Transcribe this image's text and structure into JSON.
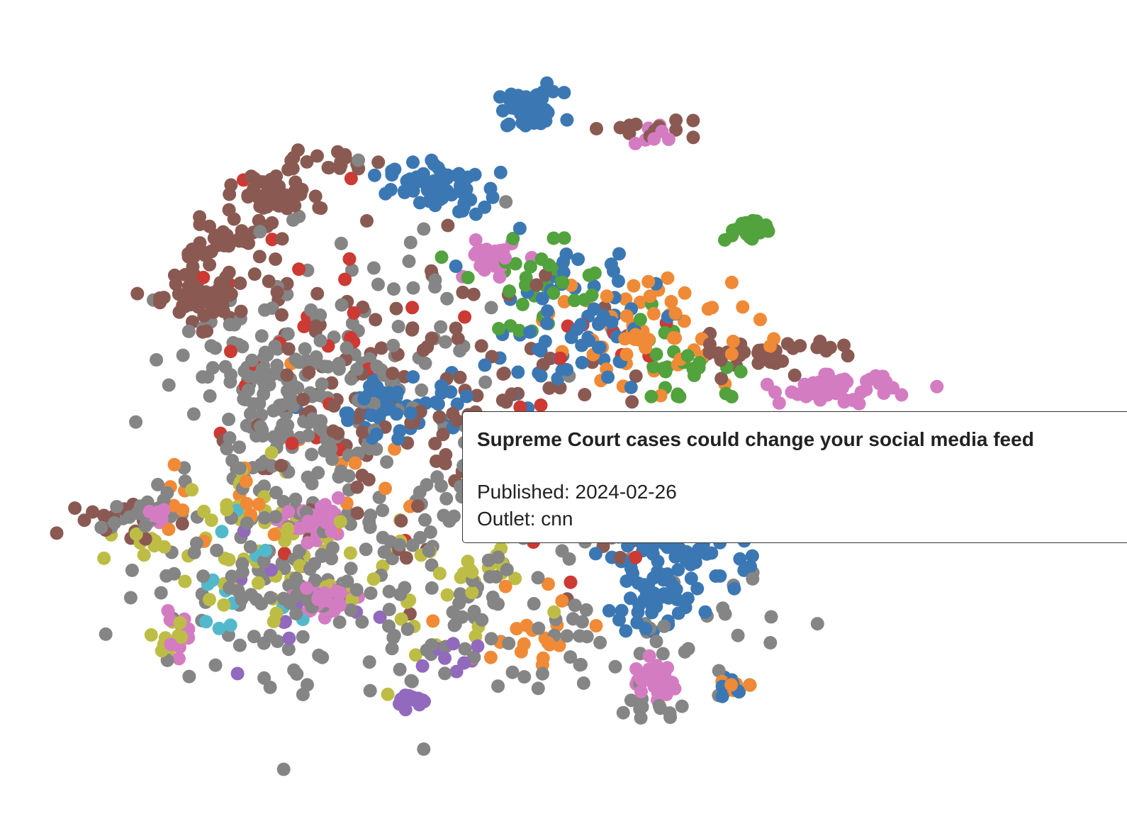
{
  "chart_data": {
    "type": "scatter",
    "title": "",
    "xlabel": "",
    "ylabel": "",
    "axes_visible": false,
    "grid": false,
    "colors": {
      "blue": "#3b78b3",
      "orange": "#f08a36",
      "green": "#52a23d",
      "red": "#cc3a33",
      "purple": "#9169bd",
      "brown": "#8a5a52",
      "pink": "#d47cc2",
      "gray": "#858585",
      "olive": "#bdbd45",
      "cyan": "#52b9cc"
    },
    "clusters": [
      {
        "series": "blue",
        "center": [
          51.0,
          93.4
        ],
        "spread": [
          1.8,
          1.3
        ],
        "count": 60
      },
      {
        "series": "blue",
        "center": [
          40.9,
          82.5
        ],
        "spread": [
          2.6,
          1.8
        ],
        "count": 60
      },
      {
        "series": "blue",
        "center": [
          37.5,
          51.6
        ],
        "spread": [
          3.6,
          2.3
        ],
        "count": 55
      },
      {
        "series": "blue",
        "center": [
          66.5,
          31.0
        ],
        "spread": [
          4.2,
          2.8
        ],
        "count": 60
      },
      {
        "series": "blue",
        "center": [
          64.2,
          23.3
        ],
        "spread": [
          2.4,
          2.3
        ],
        "count": 35
      },
      {
        "series": "blue",
        "center": [
          55.5,
          63.1
        ],
        "spread": [
          4.6,
          5.0
        ],
        "count": 70
      },
      {
        "series": "brown",
        "center": [
          23.3,
          81.4
        ],
        "spread": [
          1.9,
          1.6
        ],
        "count": 55
      },
      {
        "series": "brown",
        "center": [
          15.5,
          67.0
        ],
        "spread": [
          3.2,
          1.9
        ],
        "count": 65
      },
      {
        "series": "brown",
        "center": [
          17.8,
          74.9
        ],
        "spread": [
          2.6,
          1.5
        ],
        "count": 40
      },
      {
        "series": "brown",
        "center": [
          29.4,
          86.0
        ],
        "spread": [
          2.0,
          0.8
        ],
        "count": 18
      },
      {
        "series": "brown",
        "center": [
          77.0,
          59.3
        ],
        "spread": [
          4.6,
          1.3
        ],
        "count": 35
      },
      {
        "series": "brown",
        "center": [
          47.5,
          48.3
        ],
        "spread": [
          9.5,
          10.3
        ],
        "count": 90
      },
      {
        "series": "brown",
        "center": [
          30.0,
          51.6
        ],
        "spread": [
          6.5,
          7.9
        ],
        "count": 60
      },
      {
        "series": "gray",
        "center": [
          24.2,
          52.7
        ],
        "spread": [
          5.6,
          7.0
        ],
        "count": 140
      },
      {
        "series": "gray",
        "center": [
          23.9,
          29.3
        ],
        "spread": [
          7.3,
          9.3
        ],
        "count": 120
      },
      {
        "series": "gray",
        "center": [
          43.2,
          26.7
        ],
        "spread": [
          9.0,
          10.3
        ],
        "count": 110
      },
      {
        "series": "gray",
        "center": [
          33.9,
          56.6
        ],
        "spread": [
          7.8,
          11.3
        ],
        "count": 90
      },
      {
        "series": "gray",
        "center": [
          62.4,
          19.1
        ],
        "spread": [
          9.5,
          4.3
        ],
        "count": 40
      },
      {
        "series": "pink",
        "center": [
          84.1,
          53.9
        ],
        "spread": [
          3.0,
          1.0
        ],
        "count": 55
      },
      {
        "series": "pink",
        "center": [
          64.2,
          12.4
        ],
        "spread": [
          1.3,
          1.3
        ],
        "count": 40
      },
      {
        "series": "pink",
        "center": [
          28.4,
          34.5
        ],
        "spread": [
          1.6,
          1.2
        ],
        "count": 40
      },
      {
        "series": "pink",
        "center": [
          29.1,
          24.2
        ],
        "spread": [
          1.6,
          1.2
        ],
        "count": 35
      },
      {
        "series": "pink",
        "center": [
          46.5,
          72.4
        ],
        "spread": [
          1.3,
          1.5
        ],
        "count": 30
      },
      {
        "series": "pink",
        "center": [
          10.8,
          35.4
        ],
        "spread": [
          1.0,
          0.8
        ],
        "count": 15
      },
      {
        "series": "green",
        "center": [
          74.1,
          76.5
        ],
        "spread": [
          1.3,
          0.8
        ],
        "count": 25
      },
      {
        "series": "green",
        "center": [
          53.1,
          68.1
        ],
        "spread": [
          5.2,
          3.0
        ],
        "count": 35
      },
      {
        "series": "green",
        "center": [
          68.1,
          56.6
        ],
        "spread": [
          3.6,
          2.5
        ],
        "count": 25
      },
      {
        "series": "orange",
        "center": [
          64.2,
          62.4
        ],
        "spread": [
          5.8,
          4.3
        ],
        "count": 60
      },
      {
        "series": "orange",
        "center": [
          52.5,
          20.1
        ],
        "spread": [
          3.9,
          3.5
        ],
        "count": 20
      },
      {
        "series": "orange",
        "center": [
          22.3,
          41.0
        ],
        "spread": [
          7.3,
          6.4
        ],
        "count": 25
      },
      {
        "series": "olive",
        "center": [
          22.6,
          32.5
        ],
        "spread": [
          4.9,
          5.8
        ],
        "count": 50
      },
      {
        "series": "olive",
        "center": [
          41.5,
          23.7
        ],
        "spread": [
          4.9,
          5.5
        ],
        "count": 30
      },
      {
        "series": "red",
        "center": [
          26.5,
          59.4
        ],
        "spread": [
          5.8,
          9.8
        ],
        "count": 25
      },
      {
        "series": "red",
        "center": [
          56.1,
          44.6
        ],
        "spread": [
          9.5,
          12.6
        ],
        "count": 25
      },
      {
        "series": "purple",
        "center": [
          38.4,
          9.9
        ],
        "spread": [
          1.0,
          0.6
        ],
        "count": 14
      },
      {
        "series": "purple",
        "center": [
          23.3,
          20.9
        ],
        "spread": [
          6.5,
          5.0
        ],
        "count": 10
      },
      {
        "series": "cyan",
        "center": [
          19.7,
          27.3
        ],
        "spread": [
          3.9,
          3.9
        ],
        "count": 14
      },
      {
        "series": "gray",
        "center": [
          8.1,
          36.1
        ],
        "spread": [
          2.6,
          1.3
        ],
        "count": 20
      },
      {
        "series": "brown",
        "center": [
          8.1,
          35.0
        ],
        "spread": [
          2.6,
          1.6
        ],
        "count": 15
      },
      {
        "series": "olive",
        "center": [
          9.1,
          32.3
        ],
        "spread": [
          2.3,
          1.3
        ],
        "count": 10
      },
      {
        "series": "brown",
        "center": [
          62.4,
          90.6
        ],
        "spread": [
          3.2,
          0.8
        ],
        "count": 12
      },
      {
        "series": "pink",
        "center": [
          63.7,
          89.9
        ],
        "spread": [
          1.0,
          0.6
        ],
        "count": 8
      },
      {
        "series": "olive",
        "center": [
          11.8,
          18.7
        ],
        "spread": [
          1.6,
          1.6
        ],
        "count": 12
      },
      {
        "series": "pink",
        "center": [
          13.1,
          19.4
        ],
        "spread": [
          1.0,
          1.3
        ],
        "count": 10
      },
      {
        "series": "blue",
        "center": [
          72.5,
          11.8
        ],
        "spread": [
          1.3,
          0.8
        ],
        "count": 10
      },
      {
        "series": "orange",
        "center": [
          72.8,
          11.8
        ],
        "spread": [
          1.0,
          0.6
        ],
        "count": 6
      },
      {
        "series": "gray",
        "center": [
          64.2,
          8.6
        ],
        "spread": [
          2.3,
          0.8
        ],
        "count": 10
      },
      {
        "series": "olive",
        "center": [
          52.5,
          48.3
        ],
        "spread": [
          1.0,
          0.8
        ],
        "count": 8
      },
      {
        "series": "olive",
        "center": [
          47.8,
          28.8
        ],
        "spread": [
          1.3,
          1.3
        ],
        "count": 10
      },
      {
        "series": "purple",
        "center": [
          43.5,
          16.3
        ],
        "spread": [
          1.6,
          1.3
        ],
        "count": 8
      }
    ]
  },
  "tooltip": {
    "title": "Supreme Court cases could change your social media feed",
    "published": "Published: 2024-02-26",
    "outlet": "Outlet: cnn"
  }
}
